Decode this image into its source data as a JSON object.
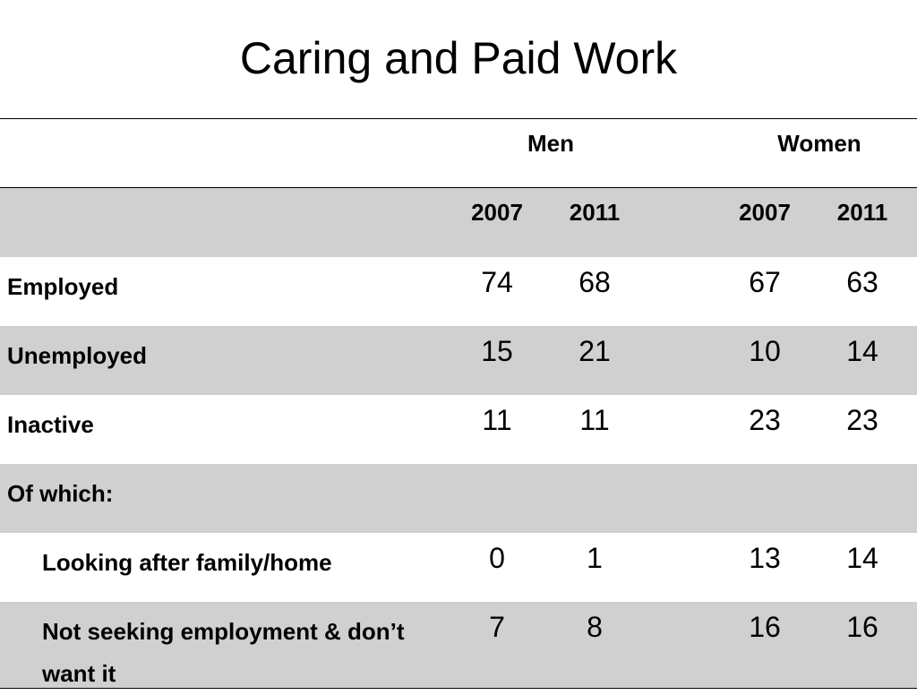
{
  "title": "Caring and Paid Work",
  "groups": [
    "Men",
    "Women"
  ],
  "years": [
    "2007",
    "2011",
    "2007",
    "2011"
  ],
  "rows": [
    {
      "label": "Employed",
      "values": [
        "74",
        "68",
        "67",
        "63"
      ]
    },
    {
      "label": "Unemployed",
      "values": [
        "15",
        "21",
        "10",
        "14"
      ]
    },
    {
      "label": "Inactive",
      "values": [
        "11",
        "11",
        "23",
        "23"
      ]
    },
    {
      "label": "Of which:",
      "values": [
        "",
        "",
        "",
        ""
      ]
    },
    {
      "label": "Looking after family/home",
      "values": [
        "0",
        "1",
        "13",
        "14"
      ]
    },
    {
      "label": "Not seeking employment & don’t want it",
      "values": [
        "7",
        "8",
        "16",
        "16"
      ]
    }
  ]
}
